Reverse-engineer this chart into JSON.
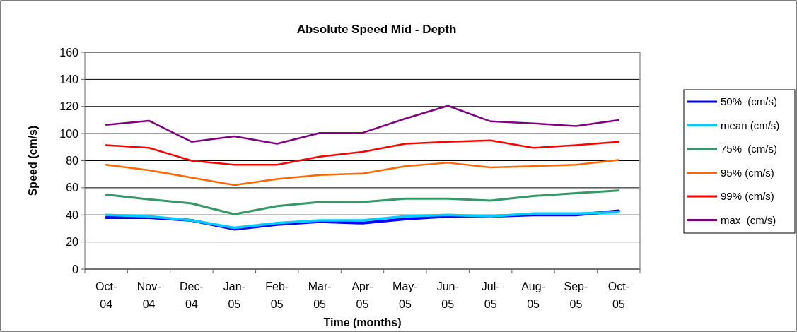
{
  "chart_data": {
    "type": "line",
    "title": "Absolute Speed Mid - Depth",
    "xlabel": "Time (months)",
    "ylabel": "Speed (cm/s)",
    "categories": [
      "Oct-04",
      "Nov-04",
      "Dec-04",
      "Jan-05",
      "Feb-05",
      "Mar-05",
      "Apr-05",
      "May-05",
      "Jun-05",
      "Jul-05",
      "Aug-05",
      "Sep-05",
      "Oct-05"
    ],
    "ylim": [
      0,
      160
    ],
    "yticks": [
      0,
      20,
      40,
      60,
      80,
      100,
      120,
      140,
      160
    ],
    "grid": "y",
    "legend": "right",
    "marker": "none",
    "line_style": "solid",
    "series": [
      {
        "name": "50%  (cm/s)",
        "color": "#0000ff",
        "values": [
          38,
          38,
          36,
          29.5,
          33,
          35,
          34,
          37,
          39,
          39,
          40,
          40,
          43
        ]
      },
      {
        "name": "mean (cm/s)",
        "color": "#00ccff",
        "values": [
          40,
          39,
          36,
          30.5,
          34,
          36,
          36,
          39,
          40,
          39,
          41,
          41,
          42
        ]
      },
      {
        "name": "75%  (cm/s)",
        "color": "#339966",
        "values": [
          55,
          51.5,
          48.5,
          40.5,
          46.5,
          49.5,
          49.5,
          52,
          52,
          50.5,
          54,
          56,
          58
        ]
      },
      {
        "name": "95% (cm/s)",
        "color": "#ff6600",
        "values": [
          77,
          73,
          67.5,
          62,
          66.5,
          69.5,
          70.5,
          76,
          78.5,
          75,
          76,
          77,
          80.5
        ]
      },
      {
        "name": "99% (cm/s)",
        "color": "#ff0000",
        "values": [
          91.5,
          89.5,
          80,
          77,
          77,
          83,
          86.5,
          92.5,
          94,
          95,
          89.5,
          91.5,
          94
        ]
      },
      {
        "name": "max  (cm/s)",
        "color": "#800080",
        "values": [
          106.5,
          109.5,
          94,
          98,
          92.5,
          100.5,
          100.5,
          111,
          120.5,
          109,
          107.5,
          105.5,
          110
        ]
      }
    ]
  }
}
